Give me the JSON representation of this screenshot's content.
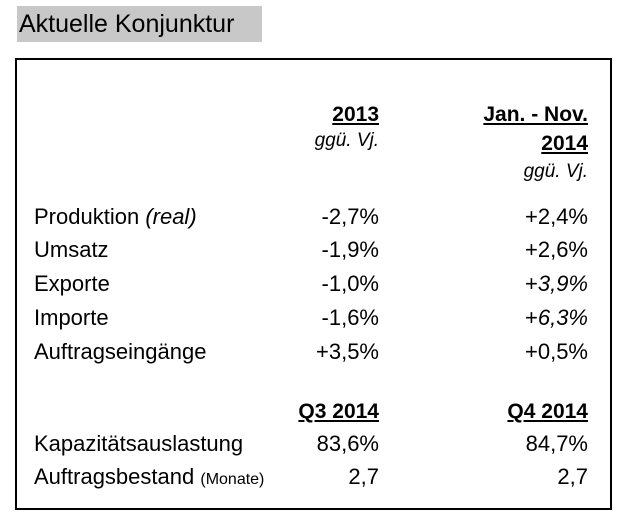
{
  "title": "Aktuelle Konjunktur",
  "header": {
    "col1_year": "2013",
    "col1_sub": "ggü. Vj.",
    "col2_line1": "Jan. - Nov.",
    "col2_line2": "2014",
    "col2_sub": "ggü. Vj."
  },
  "rows": [
    {
      "label": "Produktion",
      "label_note": "(real)",
      "v2013": "-2,7%",
      "v2014": "+2,4%"
    },
    {
      "label": "Umsatz",
      "v2013": "-1,9%",
      "v2014": "+2,6%"
    },
    {
      "label": "Exporte",
      "v2013": "-1,0%",
      "v2014_sign": "+",
      "v2014_num": "3,9%"
    },
    {
      "label": "Importe",
      "v2013": "-1,6%",
      "v2014_sign": "+",
      "v2014_num": "6,3%"
    },
    {
      "label": "Auftragseingänge",
      "v2013": "+3,5%",
      "v2014": "+0,5%"
    }
  ],
  "quarter_header": {
    "q3": "Q3 2014",
    "q4": "Q4 2014"
  },
  "quarter_rows": [
    {
      "label": "Kapazitätsauslastung",
      "q3": "83,6%",
      "q4": "84,7%"
    },
    {
      "label": "Auftragsbestand",
      "label_note": "(Monate)",
      "q3": "2,7",
      "q4": "2,7"
    }
  ]
}
